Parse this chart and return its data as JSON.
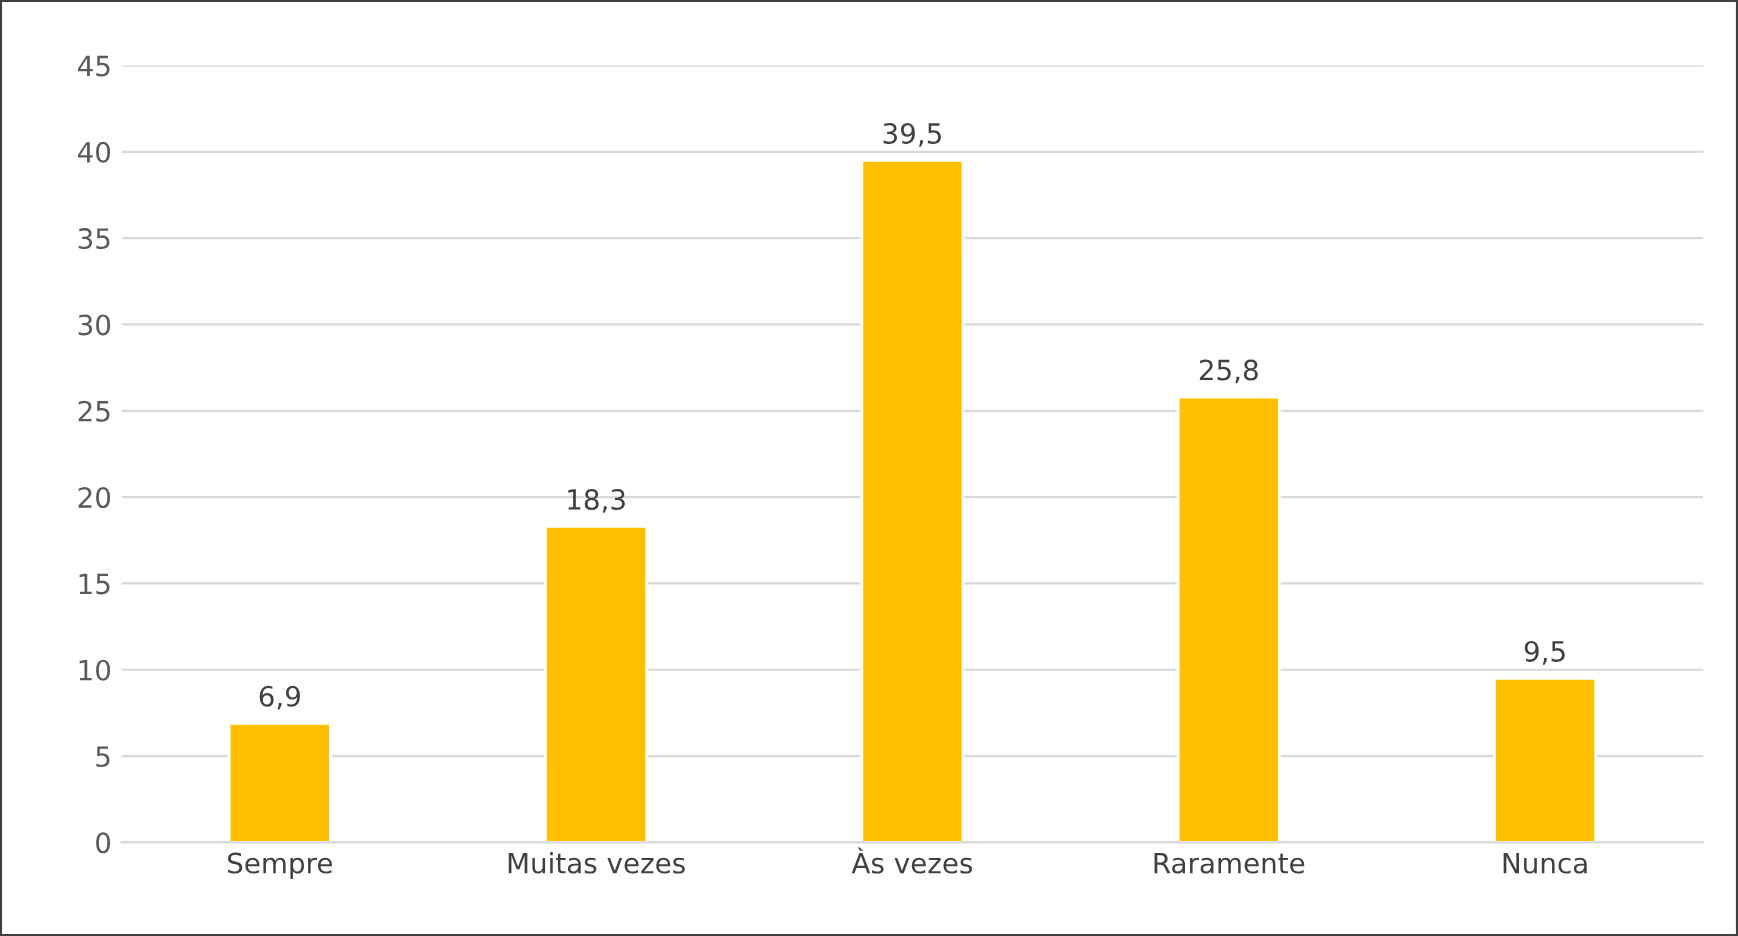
{
  "chart_data": {
    "type": "bar",
    "categories": [
      "Sempre",
      "Muitas vezes",
      "Às vezes",
      "Raramente",
      "Nunca"
    ],
    "values": [
      6.9,
      18.3,
      39.5,
      25.8,
      9.5
    ],
    "value_labels": [
      "6,9",
      "18,3",
      "39,5",
      "25,8",
      "9,5"
    ],
    "color": "#ffc000",
    "ylim": [
      0,
      45
    ],
    "yticks": [
      0,
      5,
      10,
      15,
      20,
      25,
      30,
      35,
      40,
      45
    ],
    "grid": "y",
    "legend": false
  }
}
